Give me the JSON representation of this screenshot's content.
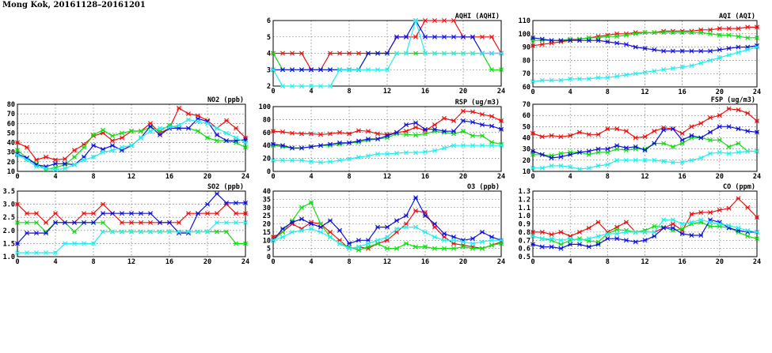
{
  "page": {
    "title": "Mong Kok, 20161128–20161201"
  },
  "colors": {
    "red": "#ee1111",
    "green": "#11dd11",
    "blue": "#1111dd",
    "cyan": "#22eeee"
  },
  "chart_data": [
    {
      "id": "aqhi",
      "type": "line",
      "title": "AQHI (AQHI)",
      "xlim": [
        0,
        24
      ],
      "ylim": [
        2,
        6
      ],
      "xticks": [
        "0",
        "4",
        "8",
        "12",
        "16",
        "20",
        "24"
      ],
      "yticks": [
        "2",
        "3",
        "4",
        "5",
        "6"
      ],
      "grid": true,
      "series": [
        {
          "color": "red",
          "values": [
            4,
            4,
            4,
            4,
            3,
            3,
            4,
            4,
            4,
            4,
            4,
            4,
            4,
            5,
            5,
            5,
            6,
            6,
            6,
            6,
            5,
            5,
            5,
            5,
            4
          ]
        },
        {
          "color": "green",
          "values": [
            4,
            3,
            3,
            3,
            3,
            3,
            3,
            3,
            3,
            3,
            4,
            4,
            4,
            4,
            4,
            4,
            4,
            4,
            4,
            4,
            4,
            4,
            4,
            3,
            3
          ]
        },
        {
          "color": "blue",
          "values": [
            3,
            3,
            3,
            3,
            3,
            3,
            3,
            3,
            3,
            3,
            4,
            4,
            4,
            5,
            5,
            6,
            5,
            5,
            5,
            5,
            5,
            5,
            4,
            4,
            4
          ]
        },
        {
          "color": "cyan",
          "values": [
            3,
            2,
            2,
            2,
            2,
            2,
            2,
            3,
            3,
            3,
            3,
            3,
            3,
            4,
            4,
            6,
            4,
            4,
            4,
            4,
            4,
            4,
            4,
            4,
            4
          ]
        }
      ]
    },
    {
      "id": "aqi",
      "type": "line",
      "title": "AQI (AQI)",
      "xlim": [
        0,
        24
      ],
      "ylim": [
        60,
        110
      ],
      "xticks": [
        "0",
        "4",
        "8",
        "12",
        "16",
        "20",
        "24"
      ],
      "yticks": [
        "60",
        "70",
        "80",
        "90",
        "100",
        "110"
      ],
      "grid": true,
      "series": [
        {
          "color": "red",
          "values": [
            91,
            92,
            93,
            94,
            95,
            96,
            97,
            98,
            99,
            100,
            100,
            101,
            101,
            101,
            102,
            102,
            102,
            102,
            103,
            103,
            104,
            104,
            104,
            105,
            105
          ]
        },
        {
          "color": "green",
          "values": [
            95,
            95,
            95,
            95,
            96,
            96,
            97,
            97,
            98,
            98,
            99,
            100,
            101,
            101,
            101,
            101,
            101,
            101,
            101,
            100,
            99,
            99,
            98,
            97,
            97
          ]
        },
        {
          "color": "blue",
          "values": [
            97,
            96,
            95,
            95,
            95,
            95,
            95,
            95,
            94,
            93,
            92,
            90,
            89,
            88,
            87,
            87,
            87,
            87,
            87,
            87,
            88,
            89,
            90,
            90,
            91
          ]
        },
        {
          "color": "cyan",
          "values": [
            64,
            65,
            65,
            65,
            66,
            66,
            66,
            67,
            67,
            68,
            69,
            70,
            71,
            72,
            73,
            74,
            75,
            76,
            78,
            80,
            82,
            84,
            86,
            88,
            90
          ]
        }
      ]
    },
    {
      "id": "no2",
      "type": "line",
      "title": "NO2 (ppb)",
      "xlim": [
        0,
        24
      ],
      "ylim": [
        10,
        80
      ],
      "xticks": [
        "0",
        "4",
        "8",
        "12",
        "16",
        "20",
        "24"
      ],
      "yticks": [
        "10",
        "20",
        "30",
        "40",
        "50",
        "60",
        "70",
        "80"
      ],
      "grid": true,
      "series": [
        {
          "color": "red",
          "values": [
            40,
            35,
            22,
            25,
            22,
            23,
            32,
            38,
            47,
            50,
            42,
            45,
            52,
            52,
            60,
            50,
            55,
            76,
            70,
            68,
            63,
            55,
            63,
            55,
            45
          ]
        },
        {
          "color": "green",
          "values": [
            32,
            24,
            18,
            12,
            14,
            17,
            25,
            35,
            48,
            53,
            47,
            50,
            52,
            52,
            56,
            52,
            58,
            55,
            55,
            52,
            45,
            42,
            42,
            40,
            35
          ]
        },
        {
          "color": "blue",
          "values": [
            28,
            24,
            17,
            15,
            18,
            18,
            17,
            25,
            37,
            33,
            37,
            32,
            37,
            45,
            57,
            48,
            55,
            55,
            55,
            65,
            62,
            48,
            42,
            42,
            43
          ]
        },
        {
          "color": "cyan",
          "values": [
            27,
            22,
            15,
            13,
            12,
            13,
            17,
            22,
            25,
            30,
            32,
            35,
            37,
            45,
            52,
            55,
            56,
            58,
            64,
            62,
            60,
            55,
            50,
            45,
            40
          ]
        }
      ]
    },
    {
      "id": "rsp",
      "type": "line",
      "title": "RSP (ug/m3)",
      "xlim": [
        0,
        24
      ],
      "ylim": [
        0,
        100
      ],
      "xticks": [
        "0",
        "4",
        "8",
        "12",
        "16",
        "20",
        "24"
      ],
      "yticks": [
        "0",
        "20",
        "40",
        "60",
        "80",
        "100"
      ],
      "grid": true,
      "series": [
        {
          "color": "red",
          "values": [
            62,
            61,
            59,
            58,
            58,
            57,
            58,
            60,
            58,
            63,
            62,
            58,
            57,
            60,
            62,
            68,
            63,
            72,
            82,
            78,
            93,
            92,
            88,
            85,
            78
          ]
        },
        {
          "color": "green",
          "values": [
            40,
            38,
            36,
            36,
            38,
            40,
            40,
            42,
            44,
            45,
            48,
            50,
            52,
            58,
            57,
            56,
            58,
            62,
            60,
            58,
            62,
            55,
            55,
            45,
            42
          ]
        },
        {
          "color": "blue",
          "values": [
            42,
            40,
            36,
            36,
            38,
            40,
            42,
            44,
            44,
            47,
            50,
            50,
            55,
            60,
            72,
            75,
            65,
            65,
            62,
            62,
            78,
            76,
            72,
            70,
            65
          ]
        },
        {
          "color": "cyan",
          "values": [
            17,
            17,
            17,
            17,
            15,
            14,
            15,
            17,
            19,
            22,
            24,
            27,
            27,
            28,
            29,
            29,
            30,
            32,
            36,
            40,
            40,
            40,
            40,
            40,
            40
          ]
        }
      ]
    },
    {
      "id": "fsp",
      "type": "line",
      "title": "FSP (ug/m3)",
      "xlim": [
        0,
        24
      ],
      "ylim": [
        10,
        70
      ],
      "xticks": [
        "0",
        "4",
        "8",
        "12",
        "16",
        "20",
        "24"
      ],
      "yticks": [
        "10",
        "20",
        "30",
        "40",
        "50",
        "60",
        "70"
      ],
      "grid": true,
      "series": [
        {
          "color": "red",
          "values": [
            44,
            41,
            42,
            41,
            42,
            45,
            43,
            43,
            48,
            48,
            46,
            40,
            41,
            46,
            49,
            48,
            44,
            50,
            53,
            58,
            60,
            66,
            65,
            62,
            55
          ]
        },
        {
          "color": "green",
          "values": [
            25,
            25,
            24,
            26,
            27,
            27,
            25,
            27,
            27,
            30,
            29,
            30,
            30,
            35,
            35,
            32,
            35,
            40,
            40,
            38,
            38,
            32,
            35,
            28,
            28
          ]
        },
        {
          "color": "blue",
          "values": [
            28,
            25,
            22,
            23,
            25,
            27,
            28,
            30,
            30,
            33,
            31,
            32,
            29,
            35,
            47,
            48,
            38,
            42,
            40,
            45,
            50,
            50,
            48,
            46,
            45
          ]
        },
        {
          "color": "cyan",
          "values": [
            13,
            13,
            15,
            15,
            14,
            12,
            13,
            15,
            16,
            20,
            20,
            20,
            20,
            20,
            19,
            18,
            18,
            20,
            22,
            26,
            27,
            26,
            27,
            28,
            28
          ]
        }
      ]
    },
    {
      "id": "so2",
      "type": "line",
      "title": "SO2 (ppb)",
      "xlim": [
        0,
        24
      ],
      "ylim": [
        1,
        3.5
      ],
      "xticks": [
        "0",
        "4",
        "8",
        "12",
        "16",
        "20",
        "24"
      ],
      "yticks": [
        "1.0",
        "1.5",
        "2.0",
        "2.5",
        "3.0",
        "3.5"
      ],
      "grid": true,
      "series": [
        {
          "color": "red",
          "values": [
            3.0,
            2.65,
            2.65,
            2.3,
            2.65,
            2.3,
            2.3,
            2.65,
            2.65,
            3.0,
            2.65,
            2.3,
            2.3,
            2.3,
            2.3,
            2.3,
            2.3,
            2.3,
            2.65,
            2.65,
            2.65,
            2.65,
            3.0,
            2.65,
            2.65
          ]
        },
        {
          "color": "green",
          "values": [
            2.3,
            2.3,
            2.3,
            1.95,
            2.3,
            2.3,
            1.95,
            2.3,
            2.3,
            2.3,
            1.95,
            1.95,
            1.95,
            1.95,
            1.95,
            1.95,
            1.95,
            1.95,
            1.95,
            1.95,
            1.95,
            1.95,
            1.95,
            1.5,
            1.5
          ]
        },
        {
          "color": "blue",
          "values": [
            1.5,
            1.9,
            1.9,
            1.9,
            2.3,
            2.3,
            2.3,
            2.3,
            2.3,
            2.65,
            2.65,
            2.65,
            2.65,
            2.65,
            2.65,
            2.3,
            2.3,
            1.9,
            1.9,
            2.65,
            3.0,
            3.4,
            3.05,
            3.05,
            3.05
          ]
        },
        {
          "color": "cyan",
          "values": [
            1.15,
            1.15,
            1.15,
            1.15,
            1.15,
            1.5,
            1.5,
            1.5,
            1.5,
            1.95,
            1.95,
            1.95,
            1.95,
            1.95,
            1.95,
            1.95,
            1.95,
            1.95,
            1.95,
            1.95,
            1.95,
            2.3,
            2.3,
            2.3,
            2.3
          ]
        }
      ]
    },
    {
      "id": "o3",
      "type": "line",
      "title": "O3 (ppb)",
      "xlim": [
        0,
        24
      ],
      "ylim": [
        0,
        40
      ],
      "xticks": [
        "0",
        "4",
        "8",
        "12",
        "16",
        "20",
        "24"
      ],
      "yticks": [
        "0",
        "5",
        "10",
        "15",
        "20",
        "25",
        "30",
        "35",
        "40"
      ],
      "grid": true,
      "series": [
        {
          "color": "red",
          "values": [
            12,
            15,
            20,
            17,
            21,
            20,
            15,
            10,
            5,
            6,
            5,
            8,
            10,
            15,
            20,
            28,
            27,
            18,
            12,
            8,
            7,
            6,
            5,
            7,
            9
          ]
        },
        {
          "color": "green",
          "values": [
            10,
            15,
            22,
            30,
            33,
            20,
            12,
            8,
            6,
            4,
            6,
            8,
            5,
            5,
            8,
            6,
            6,
            5,
            5,
            5,
            6,
            5,
            5,
            7,
            8
          ]
        },
        {
          "color": "blue",
          "values": [
            10,
            17,
            21,
            23,
            20,
            18,
            22,
            16,
            8,
            10,
            10,
            18,
            18,
            22,
            25,
            36,
            25,
            20,
            14,
            12,
            10,
            11,
            15,
            12,
            10
          ]
        },
        {
          "color": "cyan",
          "values": [
            10,
            12,
            15,
            16,
            17,
            15,
            12,
            8,
            5,
            6,
            8,
            10,
            12,
            17,
            18,
            18,
            15,
            12,
            10,
            10,
            9,
            8,
            9,
            10,
            10
          ]
        }
      ]
    },
    {
      "id": "co",
      "type": "line",
      "title": "CO (ppm)",
      "xlim": [
        0,
        24
      ],
      "ylim": [
        0.5,
        1.3
      ],
      "xticks": [
        "0",
        "4",
        "8",
        "12",
        "16",
        "20",
        "24"
      ],
      "yticks": [
        "0.5",
        "0.6",
        "0.7",
        "0.8",
        "0.9",
        "1.0",
        "1.1",
        "1.2",
        "1.3"
      ],
      "grid": true,
      "series": [
        {
          "color": "red",
          "values": [
            0.8,
            0.8,
            0.77,
            0.8,
            0.75,
            0.8,
            0.85,
            0.92,
            0.8,
            0.86,
            0.92,
            0.8,
            0.8,
            0.8,
            0.85,
            0.9,
            0.82,
            1.02,
            1.04,
            1.04,
            1.07,
            1.09,
            1.21,
            1.1,
            0.98
          ]
        },
        {
          "color": "green",
          "values": [
            0.75,
            0.72,
            0.7,
            0.65,
            0.7,
            0.72,
            0.69,
            0.68,
            0.78,
            0.83,
            0.82,
            0.8,
            0.82,
            0.87,
            0.86,
            0.82,
            0.84,
            0.9,
            0.92,
            0.87,
            0.87,
            0.85,
            0.8,
            0.75,
            0.72
          ]
        },
        {
          "color": "blue",
          "values": [
            0.65,
            0.62,
            0.62,
            0.6,
            0.65,
            0.65,
            0.62,
            0.65,
            0.72,
            0.72,
            0.7,
            0.68,
            0.7,
            0.75,
            0.85,
            0.85,
            0.78,
            0.76,
            0.76,
            0.95,
            0.92,
            0.85,
            0.82,
            0.8,
            0.8
          ]
        },
        {
          "color": "cyan",
          "values": [
            0.75,
            0.72,
            0.72,
            0.7,
            0.72,
            0.7,
            0.72,
            0.75,
            0.78,
            0.78,
            0.8,
            0.8,
            0.8,
            0.8,
            0.95,
            0.95,
            0.9,
            0.92,
            0.95,
            0.92,
            0.9,
            0.88,
            0.85,
            0.82,
            0.8
          ]
        }
      ]
    }
  ]
}
